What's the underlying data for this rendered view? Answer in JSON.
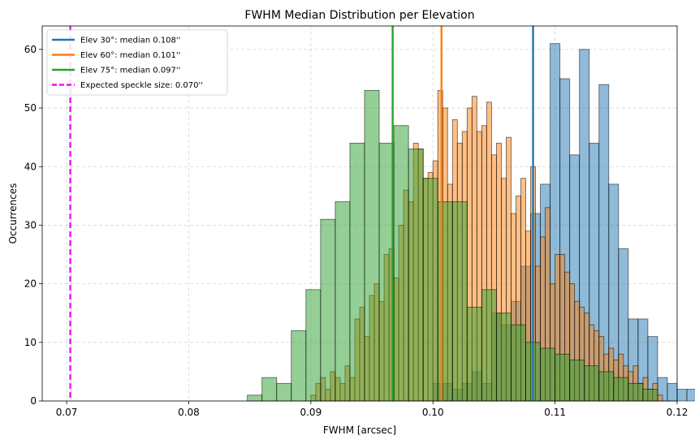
{
  "chart_data": {
    "type": "bar",
    "title": "FWHM Median Distribution per Elevation",
    "xlabel": "FWHM [arcsec]",
    "ylabel": "Occurrences",
    "xlim": [
      0.068,
      0.12
    ],
    "ylim": [
      0,
      64
    ],
    "xticks": [
      0.07,
      0.08,
      0.09,
      0.1,
      0.11,
      0.12
    ],
    "xtick_labels": [
      "0.07",
      "0.08",
      "0.09",
      "0.10",
      "0.11",
      "0.12"
    ],
    "yticks": [
      0,
      10,
      20,
      30,
      40,
      50,
      60
    ],
    "ytick_labels": [
      "0",
      "10",
      "20",
      "30",
      "40",
      "50",
      "60"
    ],
    "grid": true,
    "legend_position": "top-left",
    "series": [
      {
        "name": "Elev 30°: median 0.108''",
        "color": "#1f77b4",
        "bin_start": 0.1,
        "bin_width": 0.0008,
        "counts": [
          3,
          3,
          2,
          3,
          5,
          3,
          15,
          13,
          17,
          23,
          32,
          37,
          61,
          55,
          42,
          60,
          44,
          54,
          37,
          26,
          14,
          14,
          11,
          4,
          3,
          2,
          2
        ]
      },
      {
        "name": "Elev 60°: median 0.101''",
        "color": "#ff7f0e",
        "bin_start": 0.09,
        "bin_width": 0.0004,
        "counts": [
          1,
          3,
          4,
          2,
          5,
          4,
          3,
          6,
          4,
          14,
          16,
          11,
          18,
          20,
          17,
          25,
          26,
          21,
          30,
          36,
          34,
          44,
          43,
          38,
          39,
          41,
          53,
          50,
          37,
          48,
          44,
          46,
          50,
          52,
          46,
          47,
          51,
          42,
          44,
          38,
          45,
          32,
          35,
          38,
          29,
          40,
          23,
          28,
          33,
          20,
          25,
          25,
          22,
          20,
          17,
          16,
          15,
          13,
          12,
          11,
          8,
          9,
          7,
          8,
          6,
          5,
          6,
          3,
          4,
          2,
          3,
          1
        ]
      },
      {
        "name": "Elev 75°: median 0.097''",
        "color": "#2ca02c",
        "bin_start": 0.0848,
        "bin_width": 0.0012,
        "counts": [
          1,
          4,
          3,
          12,
          19,
          31,
          34,
          44,
          53,
          44,
          47,
          43,
          38,
          34,
          34,
          16,
          19,
          15,
          13,
          10,
          9,
          8,
          7,
          6,
          5,
          4,
          3,
          2
        ]
      }
    ],
    "reference_lines": [
      {
        "name": "Elev 30°: median 0.108''",
        "x": 0.1082,
        "color": "#1f77b4",
        "style": "solid"
      },
      {
        "name": "Elev 60°: median 0.101''",
        "x": 0.1007,
        "color": "#ff7f0e",
        "style": "solid"
      },
      {
        "name": "Elev 75°: median 0.097''",
        "x": 0.0967,
        "color": "#2ca02c",
        "style": "solid"
      },
      {
        "name": "Expected speckle size: 0.070''",
        "x": 0.0703,
        "color": "#ee11ee",
        "style": "dashed"
      }
    ]
  }
}
